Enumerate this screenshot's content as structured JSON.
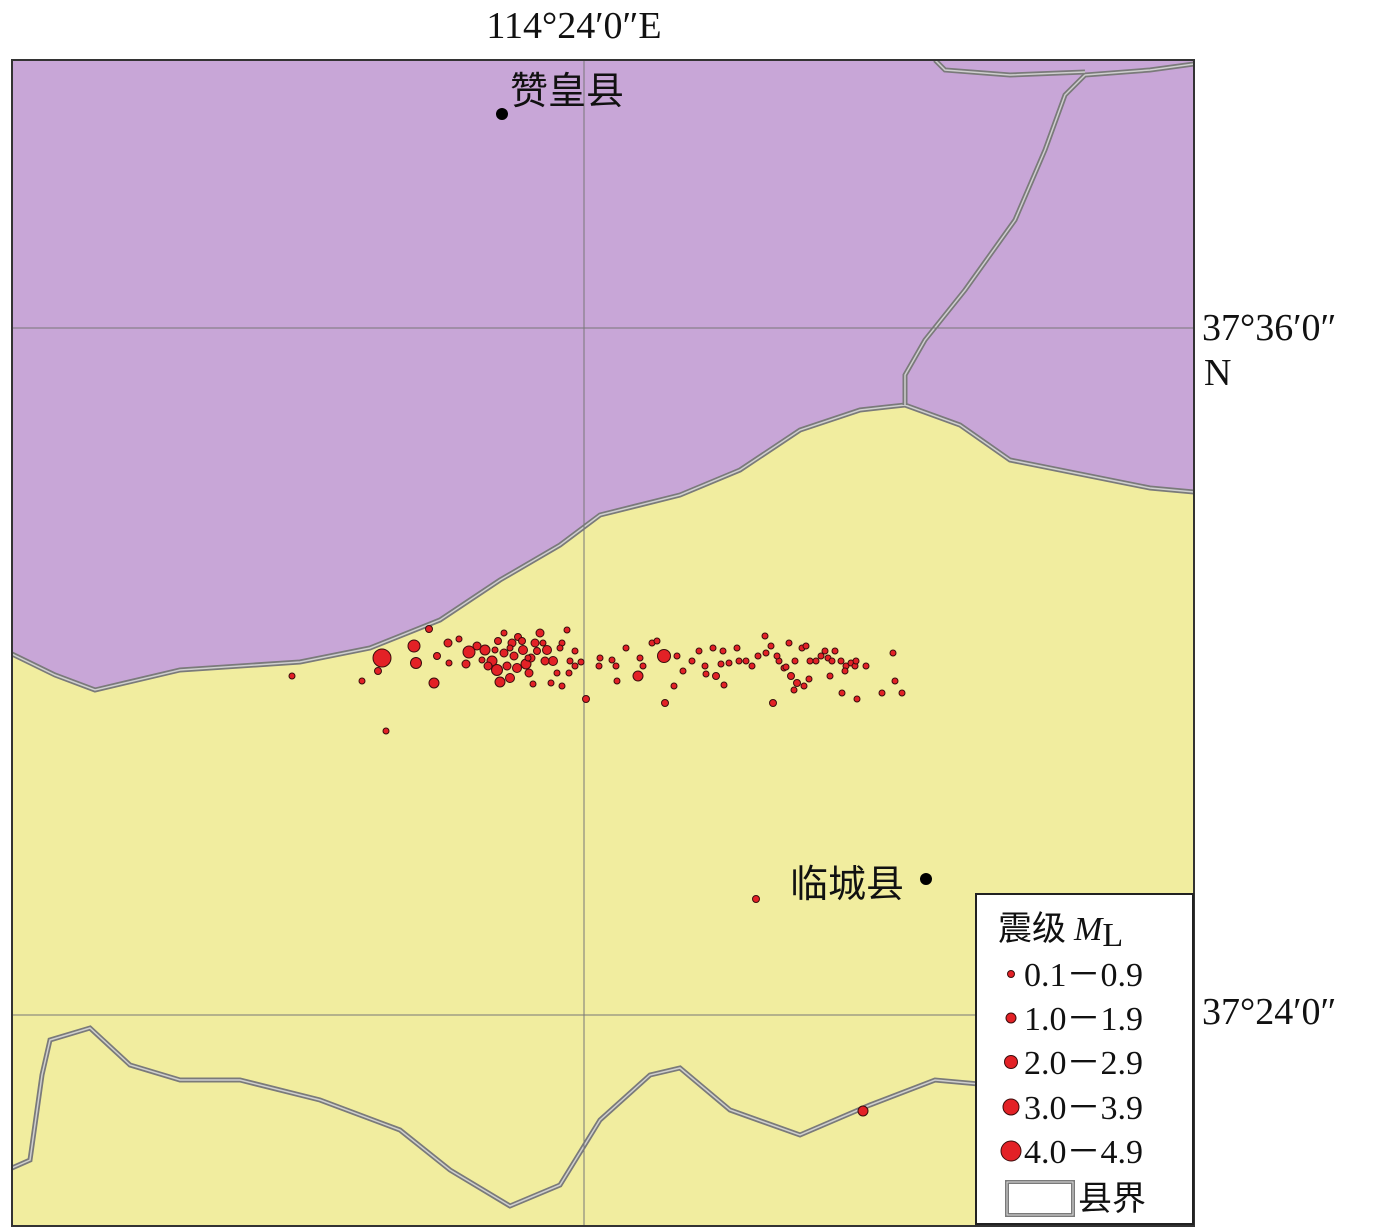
{
  "map": {
    "lon_label": "114°24′0″E",
    "lat_labels": [
      "37°36′0″",
      "N",
      "37°24′0″"
    ],
    "colors": {
      "zanhuang_fill": "#c8a6d7",
      "lincheng_fill": "#f1ed9f",
      "grid": "#777777",
      "quake": "#e32126",
      "city": "#000000"
    }
  },
  "places": [
    {
      "name": "赞皇县",
      "icon": "city-dot"
    },
    {
      "name": "临城县",
      "icon": "city-dot"
    }
  ],
  "legend": {
    "title_cjk": "震级",
    "title_sym": "M",
    "title_sub": "L",
    "items": [
      {
        "label": "0.1－0.9",
        "icon": "quake-dot-xs"
      },
      {
        "label": "1.0－1.9",
        "icon": "quake-dot-s"
      },
      {
        "label": "2.0－2.9",
        "icon": "quake-dot-m"
      },
      {
        "label": "3.0－3.9",
        "icon": "quake-dot-l"
      },
      {
        "label": "4.0－4.9",
        "icon": "quake-dot-xl"
      }
    ],
    "boundary_label": "县界"
  }
}
